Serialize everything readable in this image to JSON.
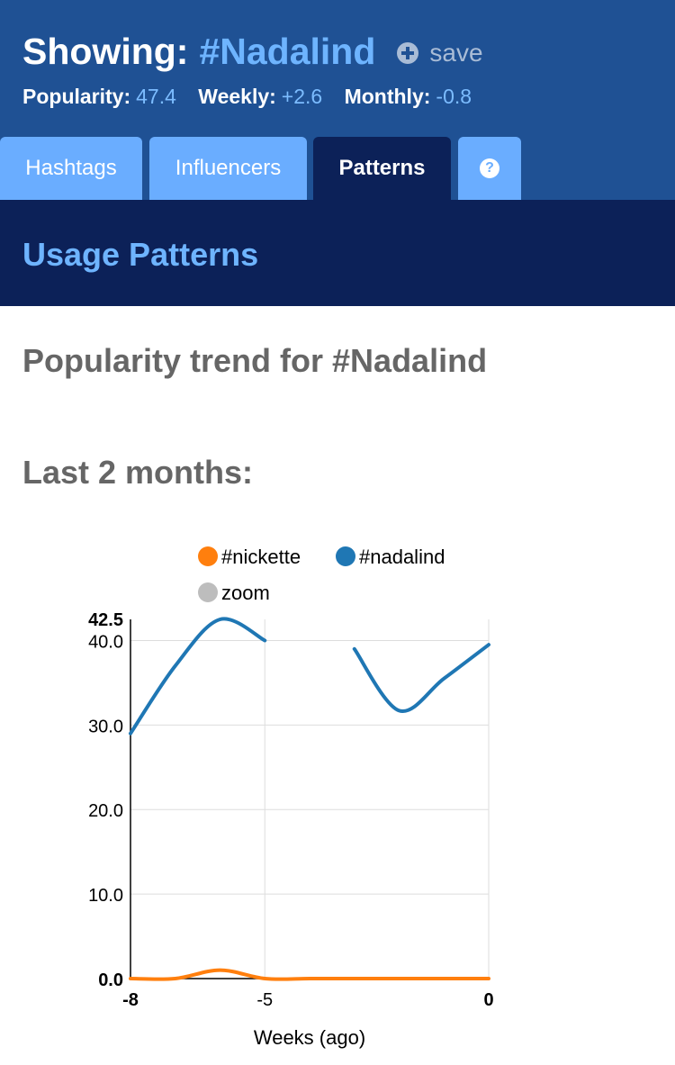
{
  "header": {
    "showing_label": "Showing:",
    "hashtag": "#Nadalind",
    "save_label": "save",
    "save_icon": "plus-circle-icon",
    "stats": [
      {
        "label": "Popularity:",
        "value": "47.4"
      },
      {
        "label": "Weekly:",
        "value": "+2.6"
      },
      {
        "label": "Monthly:",
        "value": "-0.8"
      }
    ]
  },
  "tabs": [
    {
      "label": "Hashtags",
      "active": false
    },
    {
      "label": "Influencers",
      "active": false
    },
    {
      "label": "Patterns",
      "active": true
    },
    {
      "label": "?",
      "icon": "help-icon",
      "active": false
    }
  ],
  "section": {
    "title": "Usage Patterns",
    "subtitle": "Popularity trend for #Nadalind",
    "range_label": "Last 2 months:"
  },
  "colors": {
    "header_bg": "#1f5194",
    "band_bg": "#0c2158",
    "tab_bg": "#6aadff",
    "accent": "#6eb4ff",
    "nickette": "#ff7f0e",
    "nadalind": "#1f77b4",
    "zoom": "#bdbdbd"
  },
  "chart_data": {
    "type": "line",
    "xlabel": "Weeks (ago)",
    "ylabel": "",
    "xlim": [
      -8,
      0
    ],
    "ylim": [
      0,
      42.5
    ],
    "x_ticks": [
      "-8",
      "-5",
      "0"
    ],
    "y_ticks": [
      "0.0",
      "10.0",
      "20.0",
      "30.0",
      "40.0",
      "42.5"
    ],
    "grid": true,
    "legend_position": "top",
    "legend": [
      {
        "name": "#nickette",
        "color": "#ff7f0e"
      },
      {
        "name": "#nadalind",
        "color": "#1f77b4"
      },
      {
        "name": "zoom",
        "color": "#bdbdbd"
      }
    ],
    "series": [
      {
        "name": "#nadalind",
        "color": "#1f77b4",
        "segments": [
          {
            "x": [
              -8,
              -7,
              -6,
              -5
            ],
            "y": [
              29.0,
              37.0,
              42.5,
              40.0
            ]
          },
          {
            "x": [
              -3,
              -2,
              -1,
              0
            ],
            "y": [
              39.0,
              31.7,
              35.5,
              39.5
            ]
          }
        ]
      },
      {
        "name": "#nickette",
        "color": "#ff7f0e",
        "segments": [
          {
            "x": [
              -8,
              -7,
              -6,
              -5,
              -4,
              -3,
              -2,
              -1,
              0
            ],
            "y": [
              0,
              0,
              1.0,
              0,
              0,
              0,
              0,
              0,
              0
            ]
          }
        ]
      }
    ]
  }
}
